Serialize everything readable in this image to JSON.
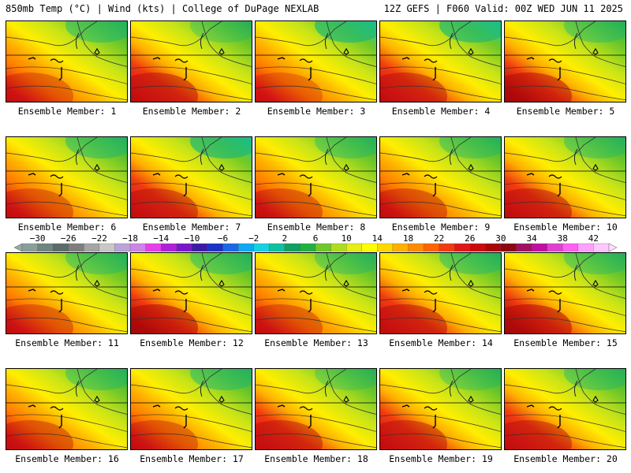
{
  "header": {
    "left_title": "850mb Temp (°C) | Wind (kts) | College of DuPage NEXLAB",
    "right_title": "12Z GEFS | F060 Valid: 00Z WED JUN 11 2025"
  },
  "members": [
    {
      "label": "Ensemble Member: 1",
      "warmth": 0.55,
      "cold": 0.7
    },
    {
      "label": "Ensemble Member: 2",
      "warmth": 0.8,
      "cold": 0.45
    },
    {
      "label": "Ensemble Member: 3",
      "warmth": 0.45,
      "cold": 0.95
    },
    {
      "label": "Ensemble Member: 4",
      "warmth": 0.75,
      "cold": 0.9
    },
    {
      "label": "Ensemble Member: 5",
      "warmth": 0.85,
      "cold": 0.6
    },
    {
      "label": "Ensemble Member: 6",
      "warmth": 0.6,
      "cold": 0.7
    },
    {
      "label": "Ensemble Member: 7",
      "warmth": 0.75,
      "cold": 0.95
    },
    {
      "label": "Ensemble Member: 8",
      "warmth": 0.65,
      "cold": 0.6
    },
    {
      "label": "Ensemble Member: 9",
      "warmth": 0.7,
      "cold": 0.6
    },
    {
      "label": "Ensemble Member: 10",
      "warmth": 0.8,
      "cold": 0.6
    },
    {
      "label": "Ensemble Member: 11",
      "warmth": 0.6,
      "cold": 0.6
    },
    {
      "label": "Ensemble Member: 12",
      "warmth": 0.9,
      "cold": 0.65
    },
    {
      "label": "Ensemble Member: 13",
      "warmth": 0.6,
      "cold": 0.55
    },
    {
      "label": "Ensemble Member: 14",
      "warmth": 0.8,
      "cold": 0.65
    },
    {
      "label": "Ensemble Member: 15",
      "warmth": 0.9,
      "cold": 0.55
    },
    {
      "label": "Ensemble Member: 16",
      "warmth": 0.65,
      "cold": 0.6
    },
    {
      "label": "Ensemble Member: 17",
      "warmth": 0.6,
      "cold": 0.7
    },
    {
      "label": "Ensemble Member: 18",
      "warmth": 0.75,
      "cold": 0.45
    },
    {
      "label": "Ensemble Member: 19",
      "warmth": 0.75,
      "cold": 0.5
    },
    {
      "label": "Ensemble Member: 20",
      "warmth": 0.75,
      "cold": 0.6
    }
  ],
  "colorbar": {
    "labels": [
      "-30",
      "-26",
      "-22",
      "-18",
      "-14",
      "-10",
      "-6",
      "-2",
      "2",
      "6",
      "10",
      "14",
      "18",
      "22",
      "26",
      "30",
      "34",
      "38",
      "42"
    ],
    "colors": [
      "#8a9f9a",
      "#6f8580",
      "#5c6d69",
      "#7e7e7e",
      "#a5a5a5",
      "#c8c8c8",
      "#b7a5d8",
      "#cf84e8",
      "#e640e6",
      "#b020d8",
      "#7a18c8",
      "#3c1aa8",
      "#1c32c8",
      "#1c68e8",
      "#10a8f0",
      "#18d0e0",
      "#10c0a0",
      "#10a060",
      "#20b040",
      "#70c828",
      "#b0dc20",
      "#e6ee18",
      "#ffff00",
      "#ffd800",
      "#ffb000",
      "#ff8c00",
      "#ff6400",
      "#f03c10",
      "#e01818",
      "#c80c0c",
      "#a80808",
      "#8c0810",
      "#a01060",
      "#c010a0",
      "#e040d0",
      "#ff60f0",
      "#ffa0ff",
      "#ffc8ff"
    ]
  }
}
